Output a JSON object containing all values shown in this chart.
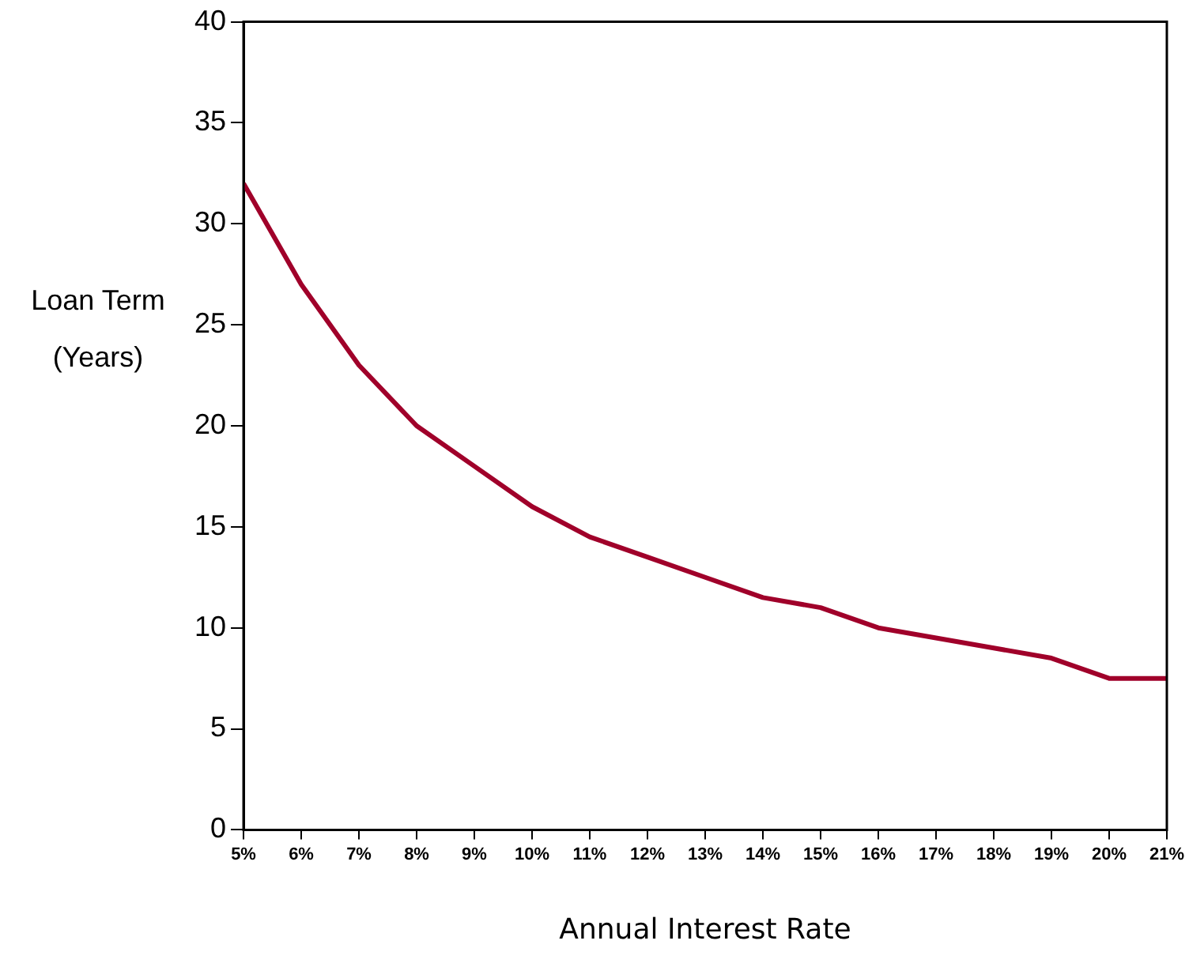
{
  "chart_data": {
    "type": "line",
    "xlabel": "Annual Interest Rate",
    "ylabel": "Loan Term (Years)",
    "x": [
      5,
      6,
      7,
      8,
      9,
      10,
      11,
      12,
      13,
      14,
      15,
      16,
      17,
      18,
      19,
      20,
      21
    ],
    "series": [
      {
        "color": "#a0002a",
        "values": [
          32,
          27,
          23,
          20,
          18,
          16,
          14.5,
          13.5,
          12.5,
          11.5,
          11,
          10,
          9.5,
          9,
          8.5,
          7.5,
          7.5
        ]
      }
    ],
    "xlim": [
      5,
      21
    ],
    "xticks": [
      {
        "value": 5,
        "label": "5%"
      },
      {
        "value": 6,
        "label": "6%"
      },
      {
        "value": 7,
        "label": "7%"
      },
      {
        "value": 8,
        "label": "8%"
      },
      {
        "value": 9,
        "label": "9%"
      },
      {
        "value": 10,
        "label": "10%"
      },
      {
        "value": 11,
        "label": "11%"
      },
      {
        "value": 12,
        "label": "12%"
      },
      {
        "value": 13,
        "label": "13%"
      },
      {
        "value": 14,
        "label": "14%"
      },
      {
        "value": 15,
        "label": "15%"
      },
      {
        "value": 16,
        "label": "16%"
      },
      {
        "value": 17,
        "label": "17%"
      },
      {
        "value": 18,
        "label": "18%"
      },
      {
        "value": 19,
        "label": "19%"
      },
      {
        "value": 20,
        "label": "20%"
      },
      {
        "value": 21,
        "label": "21%"
      }
    ],
    "ylim": [
      0,
      40
    ],
    "yticks": [
      0,
      5,
      10,
      15,
      20,
      25,
      30,
      35,
      40
    ],
    "grid": false,
    "legend": false,
    "marker": "none",
    "line_style": "solid"
  }
}
